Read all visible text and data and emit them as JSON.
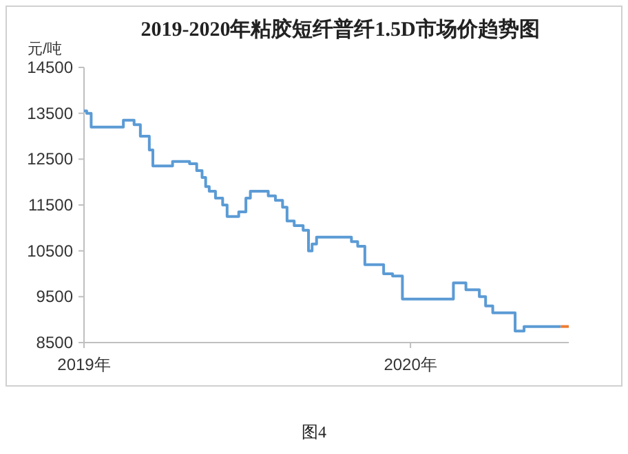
{
  "chart_data": {
    "type": "step",
    "title": "2019-2020年粘胶短纤普纤1.5D市场价趋势图",
    "ylabel": "元/吨",
    "annotations": [
      "图4"
    ],
    "xlim": [
      "2019-01-01",
      "2020-06-26"
    ],
    "xticks": [
      {
        "value": "2019-01-01",
        "label": "2019年"
      },
      {
        "value": "2020-01-01",
        "label": "2020年"
      }
    ],
    "ylim": [
      8500,
      14500
    ],
    "yticks": [
      8500,
      9500,
      10500,
      11500,
      12500,
      13500,
      14500
    ],
    "series": [
      {
        "color": "#5b9bd5",
        "x": [
          "2019-01-01",
          "2019-01-04",
          "2019-01-09",
          "2019-02-14",
          "2019-02-26",
          "2019-03-05",
          "2019-03-15",
          "2019-03-19",
          "2019-04-10",
          "2019-04-29",
          "2019-05-07",
          "2019-05-13",
          "2019-05-17",
          "2019-05-21",
          "2019-05-28",
          "2019-06-05",
          "2019-06-10",
          "2019-06-23",
          "2019-07-01",
          "2019-07-06",
          "2019-07-26",
          "2019-08-03",
          "2019-08-11",
          "2019-08-16",
          "2019-08-24",
          "2019-09-03",
          "2019-09-09",
          "2019-09-13",
          "2019-09-18",
          "2019-10-27",
          "2019-11-03",
          "2019-11-11",
          "2019-12-02",
          "2019-12-12",
          "2019-12-23",
          "2020-02-18",
          "2020-03-03",
          "2020-03-18",
          "2020-03-25",
          "2020-04-02",
          "2020-04-27",
          "2020-05-07",
          "2020-06-17"
        ],
        "values": [
          13550,
          13500,
          13200,
          13350,
          13250,
          13000,
          12700,
          12350,
          12450,
          12400,
          12250,
          12100,
          11900,
          11800,
          11650,
          11500,
          11250,
          11350,
          11650,
          11800,
          11700,
          11600,
          11450,
          11150,
          11050,
          10950,
          10500,
          10650,
          10800,
          10700,
          10600,
          10200,
          10000,
          9950,
          9450,
          9800,
          9650,
          9500,
          9300,
          9150,
          8750,
          8850,
          8850
        ]
      },
      {
        "color": "#ed7d31",
        "x": [
          "2020-06-17",
          "2020-06-26"
        ],
        "values": [
          8850,
          8850
        ]
      }
    ]
  }
}
